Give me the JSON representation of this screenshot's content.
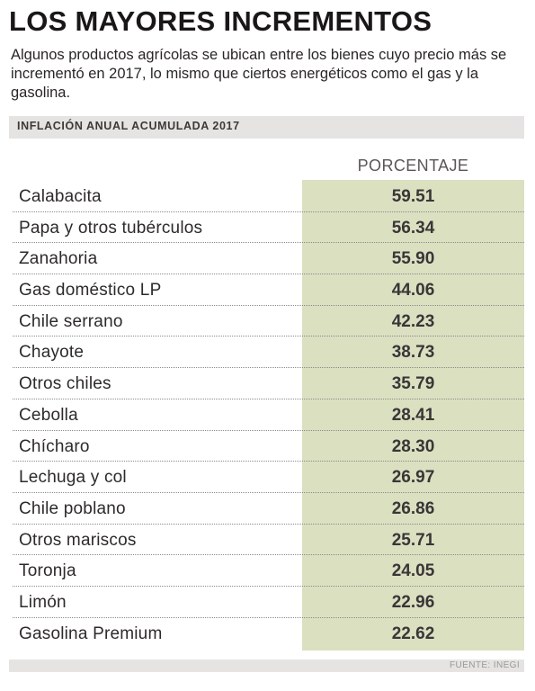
{
  "header": {
    "title": "LOS MAYORES INCREMENTOS",
    "subtitle": "Algunos productos agrícolas se ubican entre los bienes cuyo precio más se incrementó en 2017, lo mismo que ciertos energéticos como el gas y la gasolina."
  },
  "band_label": "INFLACIÓN ANUAL ACUMULADA 2017",
  "source": "FUENTE: INEGI",
  "colors": {
    "value_column": "#dbe0c1",
    "band": "#e6e4e3"
  },
  "chart_data": {
    "type": "table",
    "column_header": "PORCENTAJE",
    "rows": [
      {
        "label": "Calabacita",
        "value": "59.51"
      },
      {
        "label": "Papa y otros tubérculos",
        "value": "56.34"
      },
      {
        "label": "Zanahoria",
        "value": "55.90"
      },
      {
        "label": "Gas doméstico LP",
        "value": "44.06"
      },
      {
        "label": "Chile serrano",
        "value": "42.23"
      },
      {
        "label": "Chayote",
        "value": "38.73"
      },
      {
        "label": "Otros chiles",
        "value": "35.79"
      },
      {
        "label": "Cebolla",
        "value": "28.41"
      },
      {
        "label": "Chícharo",
        "value": "28.30"
      },
      {
        "label": "Lechuga y col",
        "value": "26.97"
      },
      {
        "label": "Chile poblano",
        "value": "26.86"
      },
      {
        "label": "Otros mariscos",
        "value": "25.71"
      },
      {
        "label": "Toronja",
        "value": "24.05"
      },
      {
        "label": "Limón",
        "value": "22.96"
      },
      {
        "label": "Gasolina Premium",
        "value": "22.62"
      }
    ]
  }
}
